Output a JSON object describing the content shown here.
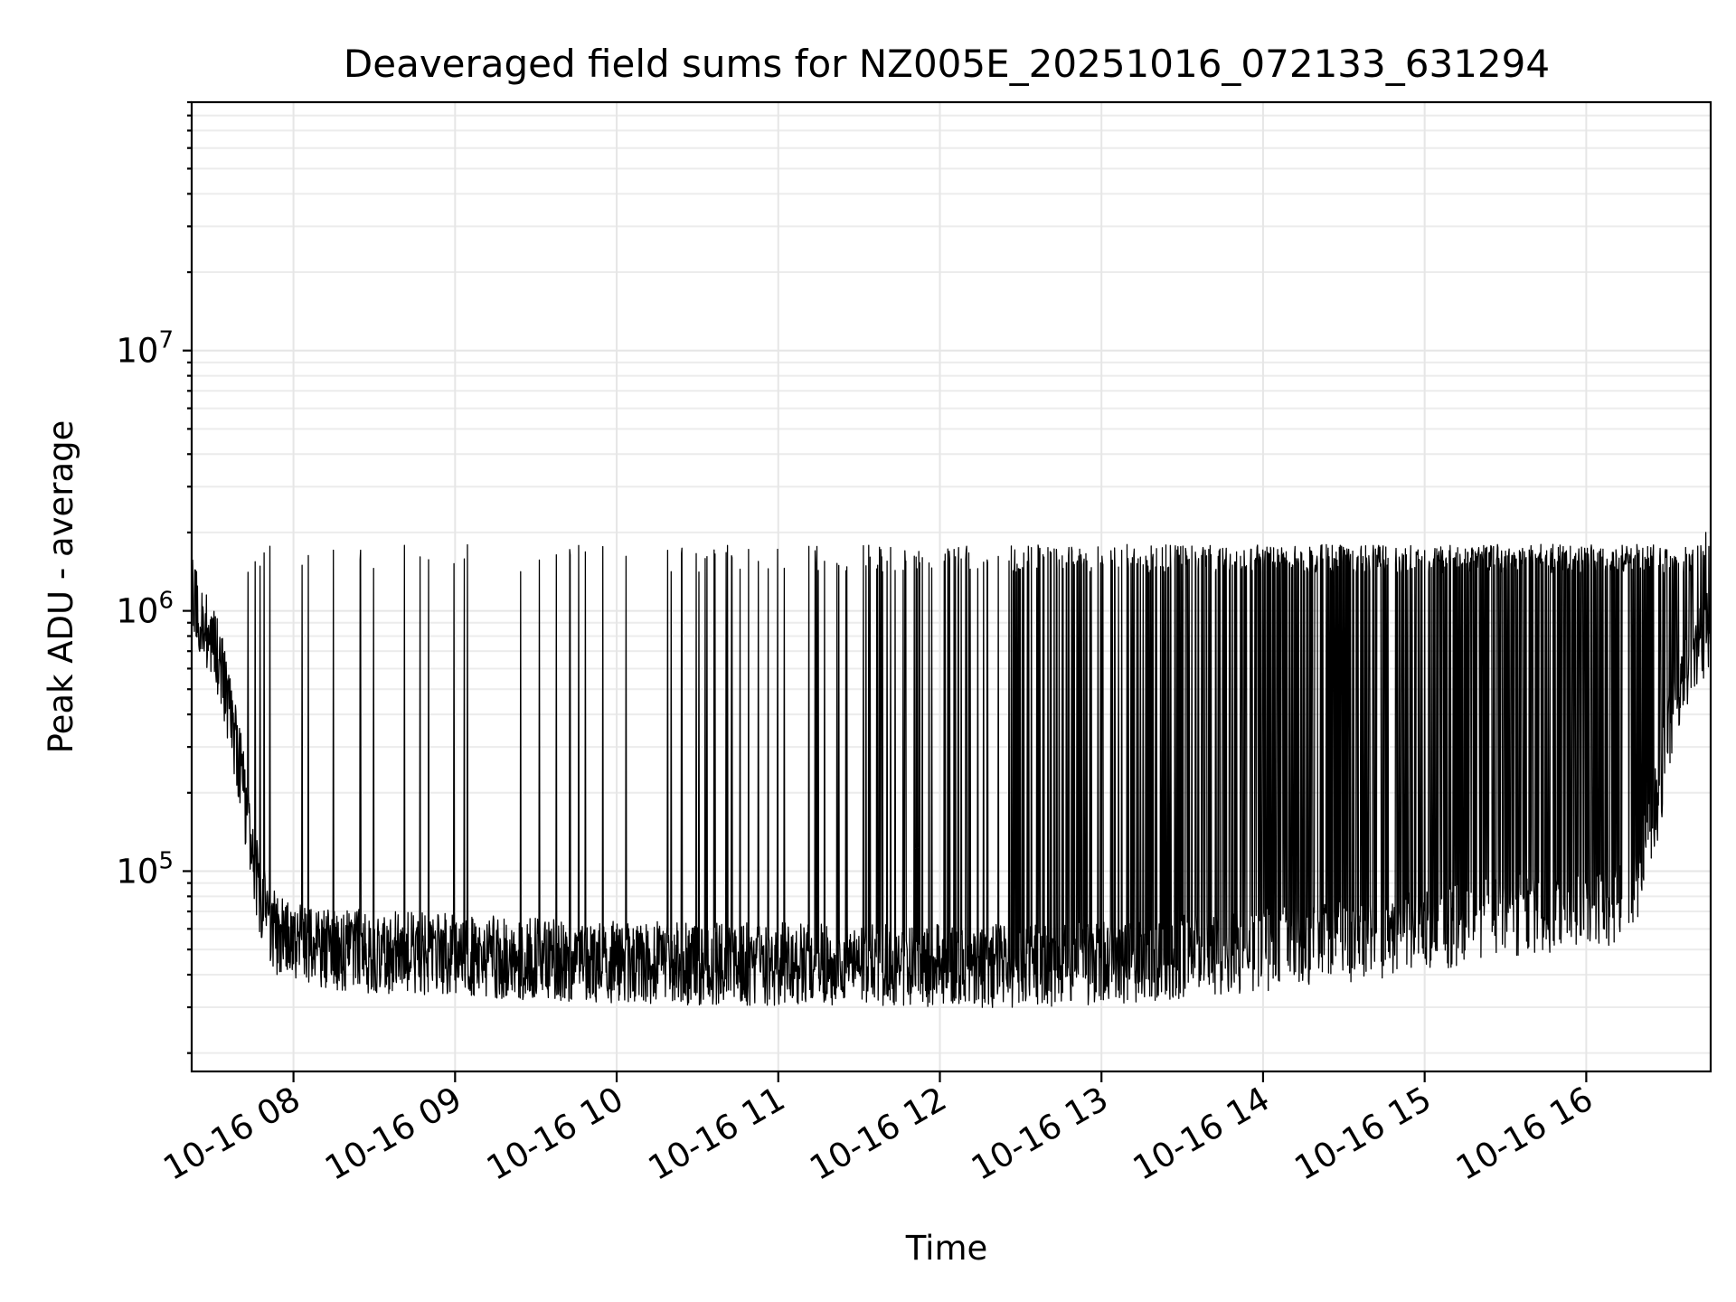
{
  "chart_data": {
    "type": "line",
    "title": "Deaveraged field sums for NZ005E_20251016_072133_631294",
    "xlabel": "Time",
    "ylabel": "Peak ADU - average",
    "yscale": "log",
    "ylim": [
      17000,
      90000000
    ],
    "xlim_hours": [
      7.37,
      16.77
    ],
    "grid": true,
    "x_ticks": [
      {
        "hour": 8,
        "label": "10-16 08"
      },
      {
        "hour": 9,
        "label": "10-16 09"
      },
      {
        "hour": 10,
        "label": "10-16 10"
      },
      {
        "hour": 11,
        "label": "10-16 11"
      },
      {
        "hour": 12,
        "label": "10-16 12"
      },
      {
        "hour": 13,
        "label": "10-16 13"
      },
      {
        "hour": 14,
        "label": "10-16 14"
      },
      {
        "hour": 15,
        "label": "10-16 15"
      },
      {
        "hour": 16,
        "label": "10-16 16"
      }
    ],
    "y_ticks": [
      {
        "value": 100000,
        "base": "10",
        "exp": "5"
      },
      {
        "value": 1000000,
        "base": "10",
        "exp": "6"
      },
      {
        "value": 10000000,
        "base": "10",
        "exp": "7"
      }
    ],
    "series": [
      {
        "name": "deaveraged field sum",
        "color": "#000000",
        "generated": true,
        "baseline_profile": [
          [
            7.37,
            1100000
          ],
          [
            7.45,
            900000
          ],
          [
            7.55,
            600000
          ],
          [
            7.65,
            300000
          ],
          [
            7.72,
            150000
          ],
          [
            7.8,
            75000
          ],
          [
            7.9,
            55000
          ],
          [
            8.2,
            50000
          ],
          [
            9.5,
            46000
          ],
          [
            10.5,
            44000
          ],
          [
            11.5,
            44000
          ],
          [
            12.5,
            43000
          ],
          [
            13.2,
            45000
          ],
          [
            14.0,
            50000
          ],
          [
            14.7,
            55000
          ],
          [
            15.2,
            62000
          ],
          [
            15.6,
            68000
          ],
          [
            16.1,
            70000
          ],
          [
            16.3,
            85000
          ],
          [
            16.45,
            200000
          ],
          [
            16.55,
            450000
          ],
          [
            16.65,
            700000
          ],
          [
            16.77,
            850000
          ]
        ],
        "spike_peak_range": [
          1400000,
          1800000
        ],
        "max_value": 2000000
      }
    ]
  }
}
